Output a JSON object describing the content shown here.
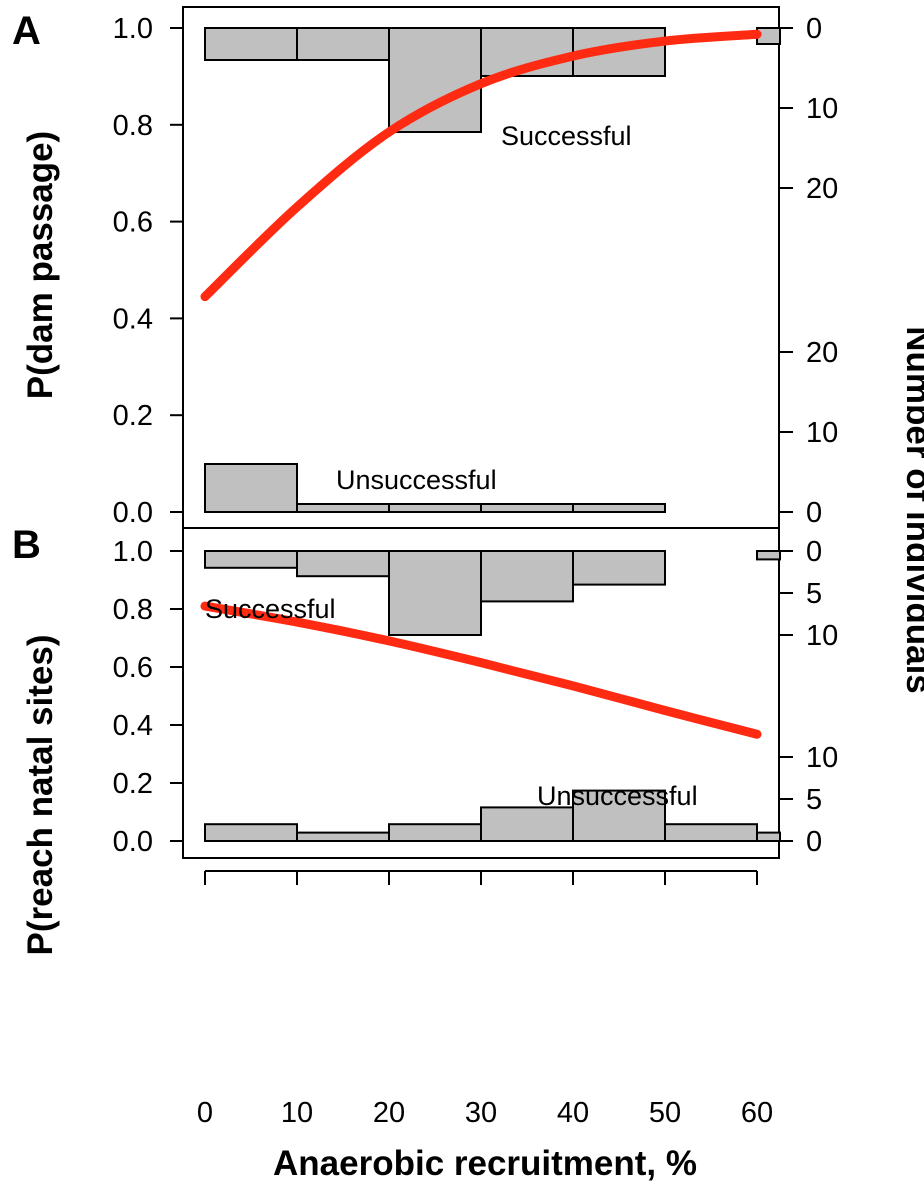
{
  "figure": {
    "xlabel": "Anaerobic recruitment, %",
    "right_ylabel": "Number of individuals"
  },
  "colors": {
    "fit_curve": "#ff2a12",
    "bar_fill": "#c0c0c0",
    "bar_stroke": "#000000"
  },
  "chart_data": [
    {
      "panel": "A",
      "type": "bar",
      "title": "",
      "ylabel": "P(dam passage)",
      "xlabel": "Anaerobic recruitment, %",
      "xlim": [
        -2,
        62.5
      ],
      "x_ticks": [
        0,
        10,
        20,
        30,
        40,
        50,
        60
      ],
      "ylim": [
        0,
        1.0
      ],
      "y_ticks": [
        0.0,
        0.2,
        0.4,
        0.6,
        0.8,
        1.0
      ],
      "grid": false,
      "right_axis": {
        "label": "Number of individuals",
        "upper_ticks": [
          0,
          10,
          20
        ],
        "lower_ticks": [
          0,
          10,
          20
        ]
      },
      "bin_edges": [
        0,
        10,
        20,
        30,
        40,
        50,
        60
      ],
      "series": [
        {
          "name": "Successful",
          "orientation": "down from top",
          "counts": [
            4,
            4,
            13,
            6,
            6,
            0
          ],
          "extra_bin": {
            "from": 60,
            "to": 62.5,
            "count": 2
          }
        },
        {
          "name": "Unsuccessful",
          "orientation": "up from bottom",
          "counts": [
            6,
            1,
            1,
            1,
            1,
            0
          ]
        }
      ],
      "fit_curve": {
        "x": [
          0,
          10,
          20,
          30,
          40,
          50,
          60
        ],
        "y": [
          0.445,
          0.63,
          0.785,
          0.885,
          0.942,
          0.973,
          0.987
        ]
      }
    },
    {
      "panel": "B",
      "type": "bar",
      "title": "",
      "ylabel": "P(reach natal sites)",
      "xlabel": "Anaerobic recruitment, %",
      "xlim": [
        -2,
        62.5
      ],
      "x_ticks": [
        0,
        10,
        20,
        30,
        40,
        50,
        60
      ],
      "ylim": [
        0,
        1.0
      ],
      "y_ticks": [
        0.0,
        0.2,
        0.4,
        0.6,
        0.8,
        1.0
      ],
      "grid": false,
      "right_axis": {
        "label": "Number of individuals",
        "upper_ticks": [
          0,
          5,
          10
        ],
        "lower_ticks": [
          0,
          5,
          10
        ]
      },
      "bin_edges": [
        0,
        10,
        20,
        30,
        40,
        50,
        60
      ],
      "series": [
        {
          "name": "Successful",
          "orientation": "down from top",
          "counts": [
            2,
            3,
            10,
            6,
            4,
            0
          ],
          "extra_bin": {
            "from": 60,
            "to": 62.5,
            "count": 1
          }
        },
        {
          "name": "Unsuccessful",
          "orientation": "up from bottom",
          "counts": [
            2,
            1,
            2,
            4,
            6,
            2
          ],
          "extra_bin": {
            "from": 60,
            "to": 62.5,
            "count": 1
          }
        }
      ],
      "fit_curve": {
        "x": [
          0,
          10,
          20,
          30,
          40,
          50,
          60
        ],
        "y": [
          0.81,
          0.755,
          0.69,
          0.615,
          0.535,
          0.45,
          0.368
        ]
      }
    }
  ]
}
